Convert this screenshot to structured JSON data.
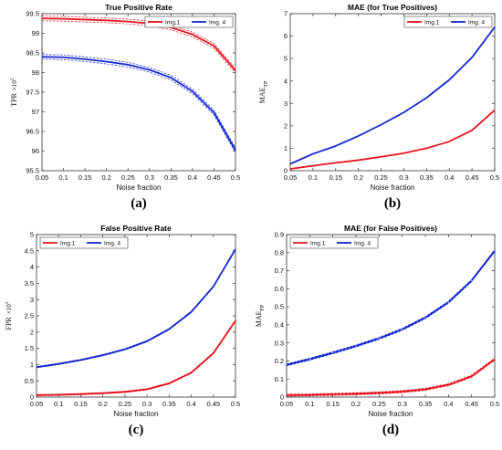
{
  "chart_data": [
    {
      "type": "line",
      "panel": "(a)",
      "title": "True Positive Rate",
      "xlabel": "Noise fraction",
      "ylabel": "TPR",
      "ylabel_multiplier": "×10",
      "ylabel_multiplier_exp": "2",
      "xlim": [
        0.05,
        0.5
      ],
      "ylim": [
        95.5,
        99.5
      ],
      "xticks": [
        "0.05",
        "0.1",
        "0.15",
        "0.2",
        "0.25",
        "0.3",
        "0.35",
        "0.4",
        "0.45",
        "0.5"
      ],
      "yticks": [
        "95.5",
        "96",
        "96.5",
        "97",
        "97.5",
        "98",
        "98.5",
        "99",
        "99.5"
      ],
      "legend_position": "top-right",
      "band": 0.06,
      "x": [
        0.05,
        0.1,
        0.15,
        0.2,
        0.25,
        0.3,
        0.35,
        0.4,
        0.45,
        0.5
      ],
      "series": [
        {
          "name": "Img.1",
          "color": "#e8141e",
          "values": [
            99.38,
            99.37,
            99.35,
            99.33,
            99.3,
            99.25,
            99.15,
            98.97,
            98.68,
            98.05
          ]
        },
        {
          "name": "Img. 4",
          "color": "#1428d2",
          "values": [
            98.4,
            98.39,
            98.34,
            98.28,
            98.2,
            98.07,
            97.87,
            97.52,
            96.98,
            96.02
          ]
        }
      ]
    },
    {
      "type": "line",
      "panel": "(b)",
      "title": "MAE (for True Positives)",
      "xlabel": "Noise fraction",
      "ylabel": "MAE",
      "ylabel_sub": "TP",
      "xlim": [
        0.05,
        0.5
      ],
      "ylim": [
        0,
        7
      ],
      "xticks": [
        "0.05",
        "0.1",
        "0.15",
        "0.2",
        "0.25",
        "0.3",
        "0.35",
        "0.4",
        "0.45",
        "0.5"
      ],
      "yticks": [
        "0",
        "1",
        "2",
        "3",
        "4",
        "5",
        "6",
        "7"
      ],
      "legend_position": "top-right",
      "band": 0,
      "x": [
        0.05,
        0.1,
        0.15,
        0.2,
        0.25,
        0.3,
        0.35,
        0.4,
        0.45,
        0.5
      ],
      "series": [
        {
          "name": "Img.1",
          "color": "#e8141e",
          "values": [
            0.08,
            0.22,
            0.35,
            0.47,
            0.62,
            0.78,
            1.0,
            1.3,
            1.8,
            2.7
          ]
        },
        {
          "name": "Img. 4",
          "color": "#1428d2",
          "values": [
            0.3,
            0.75,
            1.1,
            1.55,
            2.05,
            2.6,
            3.25,
            4.05,
            5.05,
            6.4
          ]
        }
      ]
    },
    {
      "type": "line",
      "panel": "(c)",
      "title": "False Positive Rate",
      "xlabel": "Noise fraction",
      "ylabel": "FPR",
      "ylabel_multiplier": "×10",
      "ylabel_multiplier_exp": "2",
      "xlim": [
        0.05,
        0.5
      ],
      "ylim": [
        0,
        5
      ],
      "xticks": [
        "0.05",
        "0.1",
        "0.15",
        "0.2",
        "0.25",
        "0.3",
        "0.35",
        "0.4",
        "0.45",
        "0.5"
      ],
      "yticks": [
        "0",
        "0.5",
        "1",
        "1.5",
        "2",
        "2.5",
        "3",
        "3.5",
        "4",
        "4.5",
        "5"
      ],
      "legend_position": "top-left",
      "band": 0.02,
      "x": [
        0.05,
        0.1,
        0.15,
        0.2,
        0.25,
        0.3,
        0.35,
        0.4,
        0.45,
        0.5
      ],
      "series": [
        {
          "name": "Img.1",
          "color": "#e8141e",
          "values": [
            0.06,
            0.07,
            0.09,
            0.12,
            0.16,
            0.24,
            0.42,
            0.75,
            1.35,
            2.35
          ]
        },
        {
          "name": "Img. 4",
          "color": "#1428d2",
          "values": [
            0.92,
            1.02,
            1.14,
            1.29,
            1.47,
            1.72,
            2.09,
            2.62,
            3.4,
            4.55
          ]
        }
      ]
    },
    {
      "type": "line",
      "panel": "(d)",
      "title": "MAE (for False Positives)",
      "xlabel": "Noise fraction",
      "ylabel": "MAE",
      "ylabel_sub": "FP",
      "xlim": [
        0.05,
        0.5
      ],
      "ylim": [
        0,
        0.9
      ],
      "xticks": [
        "0.05",
        "0.1",
        "0.15",
        "0.2",
        "0.25",
        "0.3",
        "0.35",
        "0.4",
        "0.45",
        "0.5"
      ],
      "yticks": [
        "0",
        "0.1",
        "0.2",
        "0.3",
        "0.4",
        "0.5",
        "0.6",
        "0.7",
        "0.8",
        "0.9"
      ],
      "legend_position": "top-left",
      "band": 0.006,
      "x": [
        0.05,
        0.1,
        0.15,
        0.2,
        0.25,
        0.3,
        0.35,
        0.4,
        0.45,
        0.5
      ],
      "series": [
        {
          "name": "Img.1",
          "color": "#e8141e",
          "values": [
            0.01,
            0.012,
            0.015,
            0.018,
            0.023,
            0.03,
            0.043,
            0.068,
            0.115,
            0.21
          ]
        },
        {
          "name": "Img. 4",
          "color": "#1428d2",
          "values": [
            0.178,
            0.21,
            0.245,
            0.283,
            0.325,
            0.375,
            0.44,
            0.525,
            0.645,
            0.81
          ]
        }
      ]
    }
  ]
}
